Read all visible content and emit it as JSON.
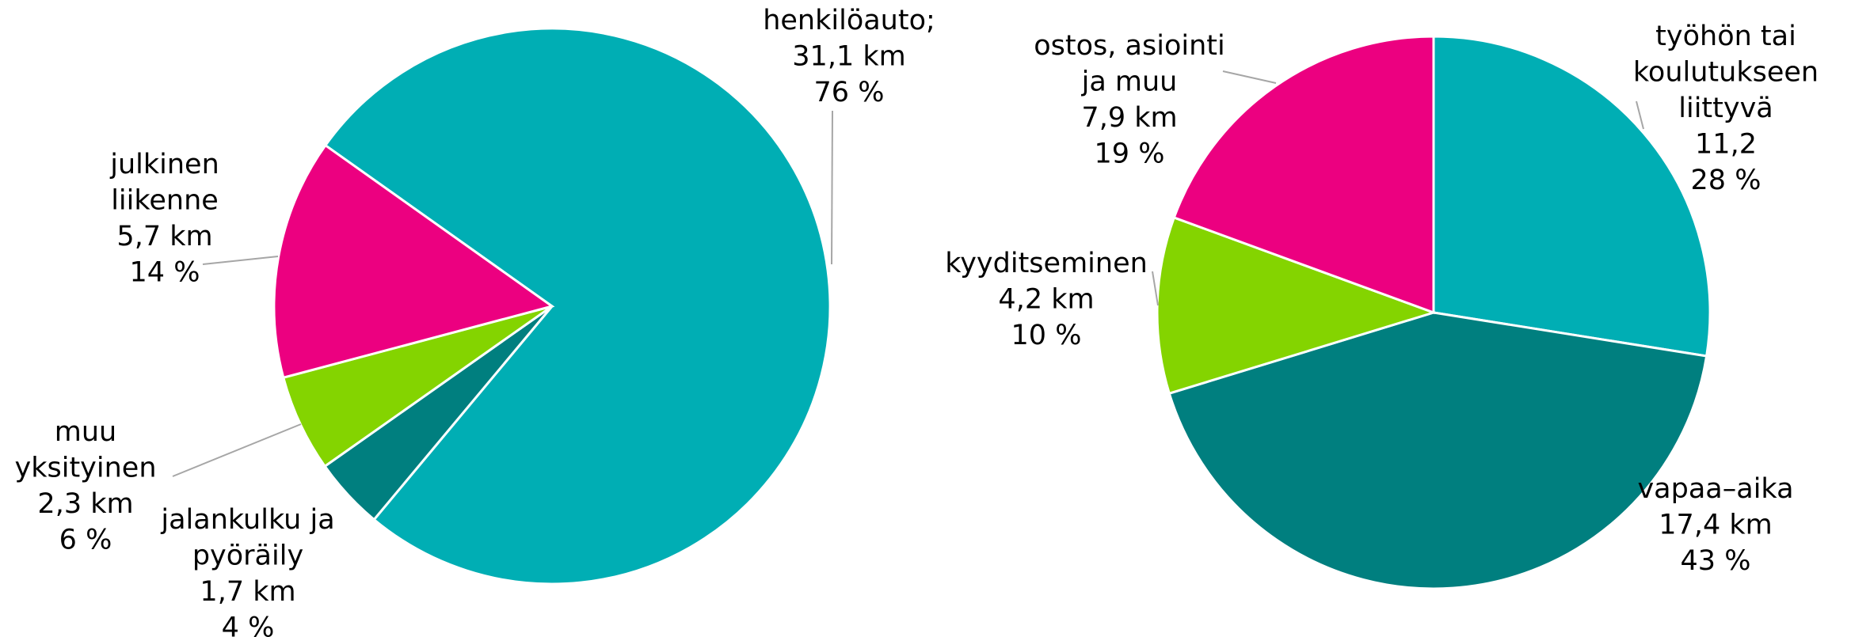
{
  "chart_data": [
    {
      "type": "pie",
      "categories": [
        "henkilöauto;",
        "jalankulku ja\npyöräily",
        "muu\nyksityinen",
        "julkinen\nliikenne"
      ],
      "values": [
        31.1,
        1.7,
        2.3,
        5.7
      ],
      "value_labels": [
        "31,1 km",
        "1,7 km",
        "2,3 km",
        "5,7 km"
      ],
      "percentages": [
        76,
        4,
        6,
        14
      ],
      "percentage_labels": [
        "76 %",
        "4 %",
        "6 %",
        "14 %"
      ],
      "colors": [
        "#00aeb4",
        "#007f7f",
        "#84d400",
        "#ec0080"
      ]
    },
    {
      "type": "pie",
      "categories": [
        "työhön tai\nkoulutukseen\nliittyvä",
        "vapaa–aika",
        "kyyditseminen",
        "ostos, asiointi\nja muu"
      ],
      "values": [
        11.2,
        17.4,
        4.2,
        7.9
      ],
      "value_labels": [
        "11,2",
        "17,4 km",
        "4,2 km",
        "7,9 km"
      ],
      "percentages": [
        28,
        43,
        10,
        19
      ],
      "percentage_labels": [
        "28 %",
        "43 %",
        "10 %",
        "19 %"
      ],
      "colors": [
        "#00aeb4",
        "#007f7f",
        "#84d400",
        "#ec0080"
      ]
    }
  ]
}
